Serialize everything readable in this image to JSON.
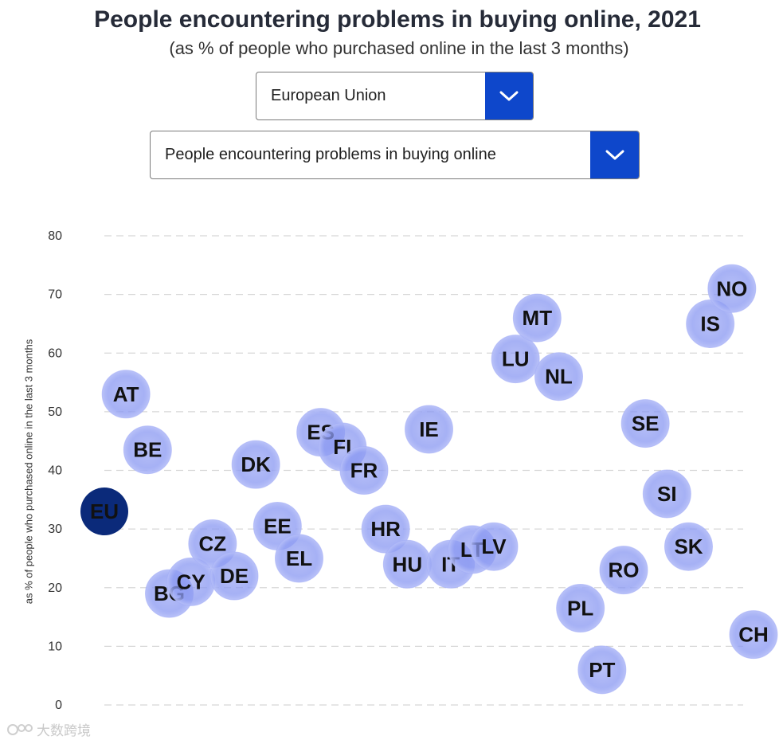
{
  "title": "People encountering problems in buying online, 2021",
  "subtitle": "(as % of people who purchased online in the last 3 months)",
  "country_select": {
    "value": "European Union",
    "icon": "chevron-down-icon"
  },
  "indicator_select": {
    "value": "People encountering problems in buying online",
    "icon": "chevron-down-icon"
  },
  "watermark": {
    "text": "大数跨境",
    "icon": "watermark-logo-icon"
  },
  "colors": {
    "accent": "#0e47cb",
    "bubble": "#8f9cf0",
    "bubble_edge": "#a3adf6",
    "highlight": "#0b2a7a",
    "grid": "#d7d7d7"
  },
  "chart_data": {
    "type": "scatter",
    "title": "People encountering problems in buying online, 2021",
    "xlabel": "",
    "ylabel": "as % of people who purchased online in the last 3 months",
    "ylim": [
      0,
      80
    ],
    "yticks": [
      0,
      10,
      20,
      30,
      40,
      50,
      60,
      70,
      80
    ],
    "grid": true,
    "x_categories": [
      "EU",
      "AT",
      "BE",
      "BG",
      "CY",
      "CZ",
      "DE",
      "DK",
      "EE",
      "EL",
      "ES",
      "FI",
      "FR",
      "HR",
      "HU",
      "IE",
      "IT",
      "LT",
      "LV",
      "LU",
      "MT",
      "NL",
      "PL",
      "PT",
      "RO",
      "SE",
      "SI",
      "SK",
      "IS",
      "NO",
      "CH"
    ],
    "highlight": "EU",
    "points": [
      {
        "label": "EU",
        "value": 33.0
      },
      {
        "label": "AT",
        "value": 53.0
      },
      {
        "label": "BE",
        "value": 43.5
      },
      {
        "label": "BG",
        "value": 19.0
      },
      {
        "label": "CY",
        "value": 21.0
      },
      {
        "label": "CZ",
        "value": 27.5
      },
      {
        "label": "DE",
        "value": 22.0
      },
      {
        "label": "DK",
        "value": 41.0
      },
      {
        "label": "EE",
        "value": 30.5
      },
      {
        "label": "EL",
        "value": 25.0
      },
      {
        "label": "ES",
        "value": 46.5
      },
      {
        "label": "FI",
        "value": 44.0
      },
      {
        "label": "FR",
        "value": 40.0
      },
      {
        "label": "HR",
        "value": 30.0
      },
      {
        "label": "HU",
        "value": 24.0
      },
      {
        "label": "IE",
        "value": 47.0
      },
      {
        "label": "IT",
        "value": 24.0
      },
      {
        "label": "LT",
        "value": 26.5
      },
      {
        "label": "LV",
        "value": 27.0
      },
      {
        "label": "LU",
        "value": 59.0
      },
      {
        "label": "MT",
        "value": 66.0
      },
      {
        "label": "NL",
        "value": 56.0
      },
      {
        "label": "PL",
        "value": 16.5
      },
      {
        "label": "PT",
        "value": 6.0
      },
      {
        "label": "RO",
        "value": 23.0
      },
      {
        "label": "SE",
        "value": 48.0
      },
      {
        "label": "SI",
        "value": 36.0
      },
      {
        "label": "SK",
        "value": 27.0
      },
      {
        "label": "IS",
        "value": 65.0
      },
      {
        "label": "NO",
        "value": 71.0
      },
      {
        "label": "CH",
        "value": 12.0
      }
    ]
  }
}
